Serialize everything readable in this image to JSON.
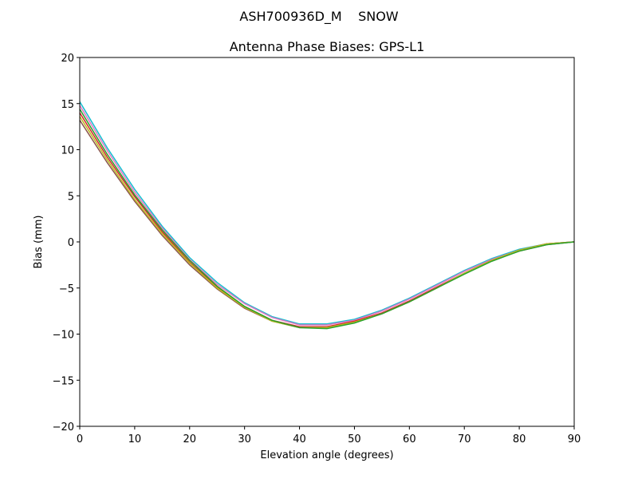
{
  "chart_data": {
    "type": "line",
    "suptitle": "ASH700936D_M    SNOW",
    "title": "Antenna Phase Biases: GPS-L1",
    "xlabel": "Elevation angle (degrees)",
    "ylabel": "Bias (mm)",
    "x": [
      0,
      5,
      10,
      15,
      20,
      25,
      30,
      35,
      40,
      45,
      50,
      55,
      60,
      65,
      70,
      75,
      80,
      85,
      90
    ],
    "xlim": [
      0,
      90
    ],
    "xticks": [
      0,
      10,
      20,
      30,
      40,
      50,
      60,
      70,
      80,
      90
    ],
    "ylim": [
      -20,
      20
    ],
    "yticks": [
      {
        "value": -20,
        "label": "−20"
      },
      {
        "value": -15,
        "label": "−15"
      },
      {
        "value": -10,
        "label": "−10"
      },
      {
        "value": -5,
        "label": "−5"
      },
      0,
      5,
      10,
      15,
      20
    ],
    "series": [
      {
        "color": "#17becf",
        "values": [
          15.2,
          10.2,
          5.7,
          1.7,
          -1.7,
          -4.4,
          -6.6,
          -8.1,
          -8.9,
          -8.9,
          -8.4,
          -7.4,
          -6.1,
          -4.6,
          -3.1,
          -1.8,
          -0.8,
          -0.2,
          0.0
        ]
      },
      {
        "color": "#e377c2",
        "values": [
          14.8,
          9.9,
          5.4,
          1.5,
          -1.9,
          -4.6,
          -6.7,
          -8.2,
          -9.0,
          -9.0,
          -8.5,
          -7.5,
          -6.2,
          -4.7,
          -3.2,
          -1.9,
          -0.9,
          -0.2,
          0.0
        ]
      },
      {
        "color": "#d62728",
        "values": [
          14.0,
          9.2,
          4.9,
          1.1,
          -2.2,
          -4.9,
          -7.0,
          -8.5,
          -9.2,
          -9.2,
          -8.6,
          -7.7,
          -6.4,
          -4.9,
          -3.4,
          -2.0,
          -0.9,
          -0.2,
          0.0
        ]
      },
      {
        "color": "#8c564b",
        "values": [
          13.2,
          8.6,
          4.4,
          0.7,
          -2.5,
          -5.1,
          -7.2,
          -8.6,
          -9.3,
          -9.3,
          -8.7,
          -7.8,
          -6.5,
          -5.0,
          -3.4,
          -2.0,
          -1.0,
          -0.3,
          0.0
        ]
      },
      {
        "color": "#bcbd22",
        "values": [
          13.6,
          8.9,
          4.6,
          0.9,
          -2.3,
          -5.0,
          -7.1,
          -8.6,
          -9.3,
          -9.3,
          -8.7,
          -7.8,
          -6.5,
          -5.0,
          -3.4,
          -2.0,
          -0.9,
          -0.2,
          0.0
        ]
      },
      {
        "color": "#2ca02c",
        "values": [
          14.4,
          9.5,
          5.1,
          1.3,
          -2.0,
          -4.8,
          -7.0,
          -8.5,
          -9.3,
          -9.4,
          -8.8,
          -7.8,
          -6.5,
          -5.0,
          -3.5,
          -2.1,
          -1.0,
          -0.3,
          0.0
        ]
      }
    ]
  }
}
